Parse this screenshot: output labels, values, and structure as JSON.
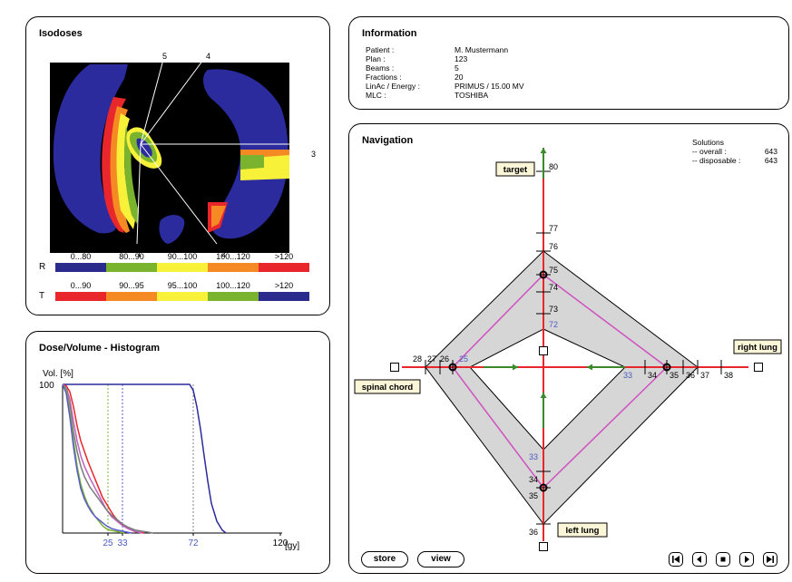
{
  "isodoses": {
    "title": "Isodoses",
    "beam_labels": [
      "1",
      "2",
      "3",
      "4",
      "5"
    ],
    "legend": {
      "R": {
        "letter": "R",
        "cells": [
          {
            "label": "0...80",
            "color": "#2b2b8e"
          },
          {
            "label": "80...90",
            "color": "#7ab32e"
          },
          {
            "label": "90...100",
            "color": "#f7f13a"
          },
          {
            "label": "100...120",
            "color": "#f58a24"
          },
          {
            "label": ">120",
            "color": "#e8262b"
          }
        ]
      },
      "T": {
        "letter": "T",
        "cells": [
          {
            "label": "0...90",
            "color": "#e8262b"
          },
          {
            "label": "90...95",
            "color": "#f58a24"
          },
          {
            "label": "95...100",
            "color": "#f7f13a"
          },
          {
            "label": "100...120",
            "color": "#7ab32e"
          },
          {
            "label": ">120",
            "color": "#2b2b8e"
          }
        ]
      }
    }
  },
  "information": {
    "title": "Information",
    "rows": [
      {
        "key": "Patient :",
        "value": "M. Mustermann"
      },
      {
        "key": "Plan :",
        "value": "123"
      },
      {
        "key": "Beams :",
        "value": "5"
      },
      {
        "key": "Fractions :",
        "value": "20"
      },
      {
        "key": "LinAc / Energy :",
        "value": "PRIMUS / 15.00 MV"
      },
      {
        "key": "MLC :",
        "value": "TOSHIBA"
      }
    ]
  },
  "dvh": {
    "title": "Dose/Volume - Histogram",
    "chart_data": {
      "type": "line",
      "ylabel": "Vol. [%]",
      "xlabel": "[gy]",
      "ytick_label": "100",
      "xticks": [
        {
          "value": 25,
          "label": "25",
          "color": "#4b5bbf"
        },
        {
          "value": 33,
          "label": "33",
          "color": "#4b5bbf"
        },
        {
          "value": 72,
          "label": "72",
          "color": "#4b5bbf"
        },
        {
          "value": 120,
          "label": "120",
          "color": "#000000"
        }
      ],
      "xlim": [
        0,
        140
      ],
      "ylim": [
        0,
        100
      ],
      "markers": [
        {
          "x": 25,
          "color": "#7ab32e"
        },
        {
          "x": 33,
          "color": "#5b5bd0"
        },
        {
          "x": 72,
          "color": "#808080"
        }
      ],
      "series": [
        {
          "color": "#2b2b9e",
          "x": [
            0,
            60,
            70,
            72,
            74,
            76,
            78,
            80,
            82,
            85,
            88,
            90
          ],
          "y": [
            100,
            100,
            100,
            96,
            85,
            70,
            52,
            35,
            20,
            8,
            2,
            0
          ]
        },
        {
          "color": "#e8262b",
          "x": [
            0,
            2,
            4,
            6,
            8,
            10,
            12,
            14,
            16,
            18,
            20,
            22,
            25,
            28,
            30,
            33,
            36,
            40,
            45
          ],
          "y": [
            100,
            99,
            95,
            85,
            72,
            62,
            55,
            48,
            42,
            36,
            30,
            24,
            18,
            12,
            9,
            6,
            3,
            1,
            0
          ]
        },
        {
          "color": "#c060c0",
          "x": [
            0,
            2,
            4,
            6,
            8,
            10,
            12,
            15,
            18,
            21,
            24,
            27,
            30,
            33,
            36,
            40,
            44
          ],
          "y": [
            100,
            98,
            90,
            75,
            62,
            52,
            45,
            37,
            30,
            23,
            16,
            11,
            8,
            5,
            3,
            1,
            0
          ]
        },
        {
          "color": "#7a7a7a",
          "x": [
            0,
            2,
            4,
            6,
            8,
            10,
            12,
            15,
            18,
            21,
            24,
            27,
            30,
            33,
            36,
            40,
            45,
            50
          ],
          "y": [
            100,
            97,
            85,
            68,
            55,
            45,
            38,
            31,
            26,
            21,
            16,
            12,
            9,
            6,
            4,
            2,
            1,
            0
          ]
        },
        {
          "color": "#7ab32e",
          "x": [
            0,
            2,
            4,
            6,
            8,
            10,
            12,
            14,
            16,
            18,
            20,
            22,
            24,
            26,
            30,
            34
          ],
          "y": [
            100,
            96,
            82,
            62,
            45,
            33,
            25,
            19,
            15,
            11,
            8,
            5,
            3,
            2,
            1,
            0
          ]
        },
        {
          "color": "#5b5bd0",
          "x": [
            0,
            2,
            4,
            6,
            8,
            10,
            12,
            14,
            16,
            18,
            21,
            24,
            27,
            30,
            34,
            38
          ],
          "y": [
            100,
            94,
            78,
            58,
            42,
            30,
            23,
            18,
            14,
            11,
            8,
            5,
            3,
            2,
            1,
            0
          ]
        }
      ]
    }
  },
  "navigation": {
    "title": "Navigation",
    "solutions": {
      "title": "Solutions",
      "overall_label": "-- overall :",
      "overall_value": "643",
      "disposable_label": "-- disposable :",
      "disposable_value": "643"
    },
    "axes": {
      "target": {
        "label": "target",
        "ticks": [
          "80",
          "77",
          "76",
          "75",
          "74",
          "73"
        ],
        "lower": "72",
        "current": 75
      },
      "right_lung": {
        "label": "right lung",
        "ticks": [
          "38",
          "37",
          "36",
          "35",
          "34"
        ],
        "lower": "33",
        "current": 35
      },
      "left_lung": {
        "label": "left lung",
        "ticks": [
          "36",
          "35",
          "34"
        ],
        "lower": "33",
        "current": 35
      },
      "spinal_chord": {
        "label": "spinal chord",
        "ticks": [
          "28",
          "27",
          "26"
        ],
        "lower": "25",
        "current": 26
      }
    },
    "colors": {
      "axis": "#e8262b",
      "arrow": "#3a8a2a",
      "polygon": "#d6d6d6",
      "current": "#d050c0",
      "lower_label": "#4b5bbf"
    },
    "buttons": {
      "store": "store",
      "view": "view"
    }
  }
}
